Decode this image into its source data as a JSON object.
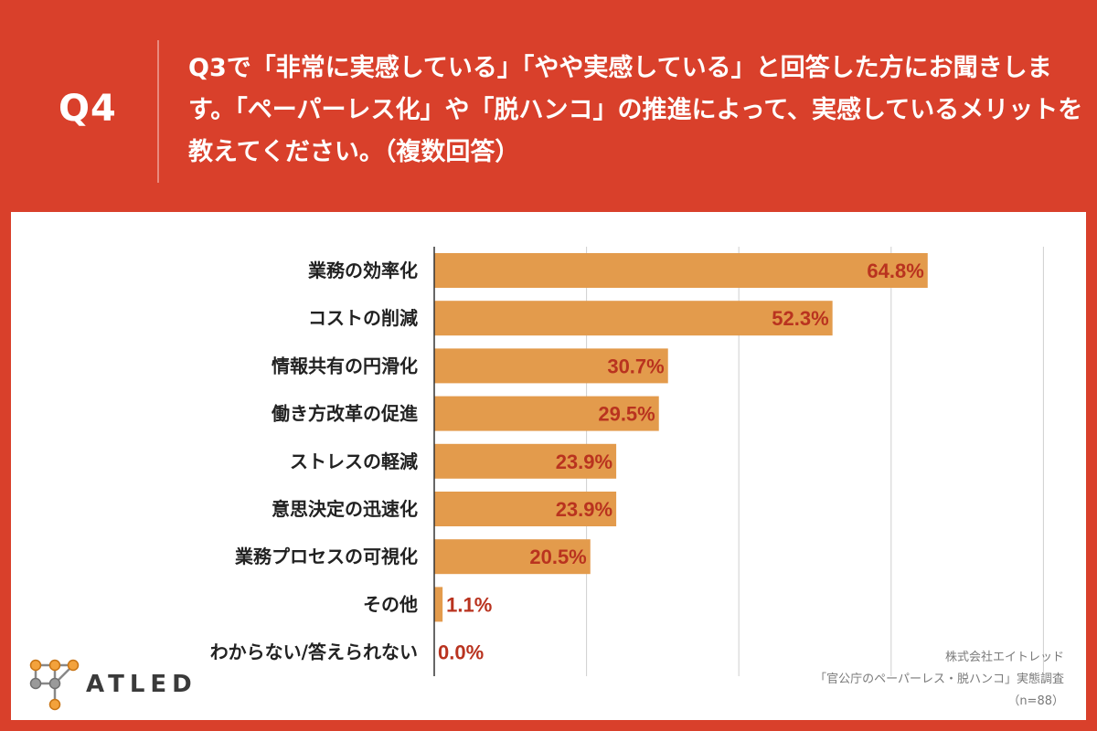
{
  "header": {
    "qnum": "Q4",
    "question": "Q3で「非常に実感している」「やや実感している」と回答した方にお聞きします。「ペーパーレス化」や「脱ハンコ」の推進によって、実感しているメリットを教えてください。（複数回答）"
  },
  "source": {
    "company": "株式会社エイトレッド",
    "survey": "「官公庁のペーパーレス・脱ハンコ」実態調査",
    "n": "（n=88）"
  },
  "logo": {
    "text": "ATLED"
  },
  "colors": {
    "background": "#d9402b",
    "bar": "#e39b4c",
    "value_text": "#b9331f",
    "grid": "#cfcfcf"
  },
  "chart_data": {
    "type": "bar",
    "orientation": "horizontal",
    "categories": [
      "業務の効率化",
      "コストの削減",
      "情報共有の円滑化",
      "働き方改革の促進",
      "ストレスの軽減",
      "意思決定の迅速化",
      "業務プロセスの可視化",
      "その他",
      "わからない/答えられない"
    ],
    "values": [
      64.8,
      52.3,
      30.7,
      29.5,
      23.9,
      23.9,
      20.5,
      1.1,
      0.0
    ],
    "labels": [
      "64.8%",
      "52.3%",
      "30.7%",
      "29.5%",
      "23.9%",
      "23.9%",
      "20.5%",
      "1.1%",
      "0.0%"
    ],
    "xlim": [
      0,
      80
    ],
    "grid": true
  }
}
